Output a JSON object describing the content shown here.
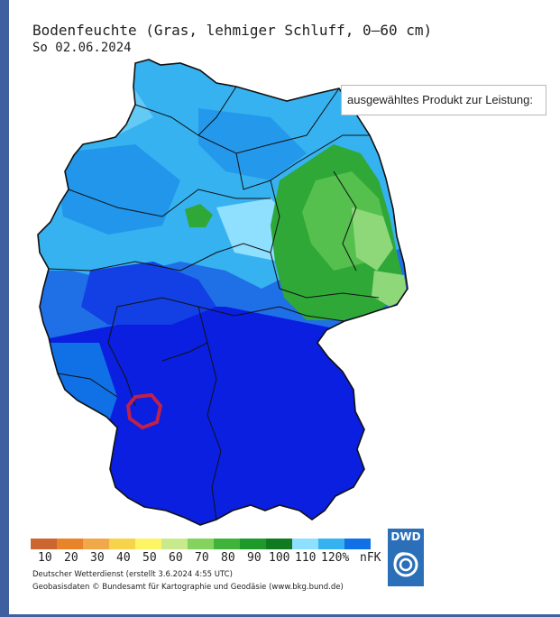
{
  "map": {
    "title": "Bodenfeuchte (Gras, lehmiger Schluff, 0–60 cm)",
    "date": "So 02.06.2024",
    "tooltip": "ausgewähltes Produkt zur Leistung:"
  },
  "legend": {
    "items": [
      {
        "label": "",
        "color": "#cc6630"
      },
      {
        "label": "10",
        "color": "#e8832a"
      },
      {
        "label": "20",
        "color": "#f0a84a"
      },
      {
        "label": "30",
        "color": "#f6d34a"
      },
      {
        "label": "40",
        "color": "#fdf566"
      },
      {
        "label": "50",
        "color": "#c8e98c"
      },
      {
        "label": "60",
        "color": "#84d35e"
      },
      {
        "label": "70",
        "color": "#3fb33a"
      },
      {
        "label": "80",
        "color": "#1d9a2a"
      },
      {
        "label": "90",
        "color": "#0f7a1f"
      },
      {
        "label": "100",
        "color": "#8fdfff"
      },
      {
        "label": "110",
        "color": "#36b2f0"
      },
      {
        "label": "120%",
        "color": "#1070e6"
      },
      {
        "label": "",
        "color": "#0a1fe0"
      }
    ],
    "unit": "nFK"
  },
  "credits": {
    "line1": "Deutscher Wetterdienst (erstellt 3.6.2024 4:55 UTC)",
    "line2": "Geobasisdaten © Bundesamt für Kartographie und Geodäsie (www.bkg.bund.de)"
  },
  "logo": {
    "text": "DWD"
  },
  "colors": {
    "deep_blue": "#0a1fe0",
    "mid_blue": "#1070e6",
    "light_blue": "#36b2f0",
    "green": "#2fa838",
    "light_green": "#6fcf6a",
    "marker": "#c0204a"
  }
}
